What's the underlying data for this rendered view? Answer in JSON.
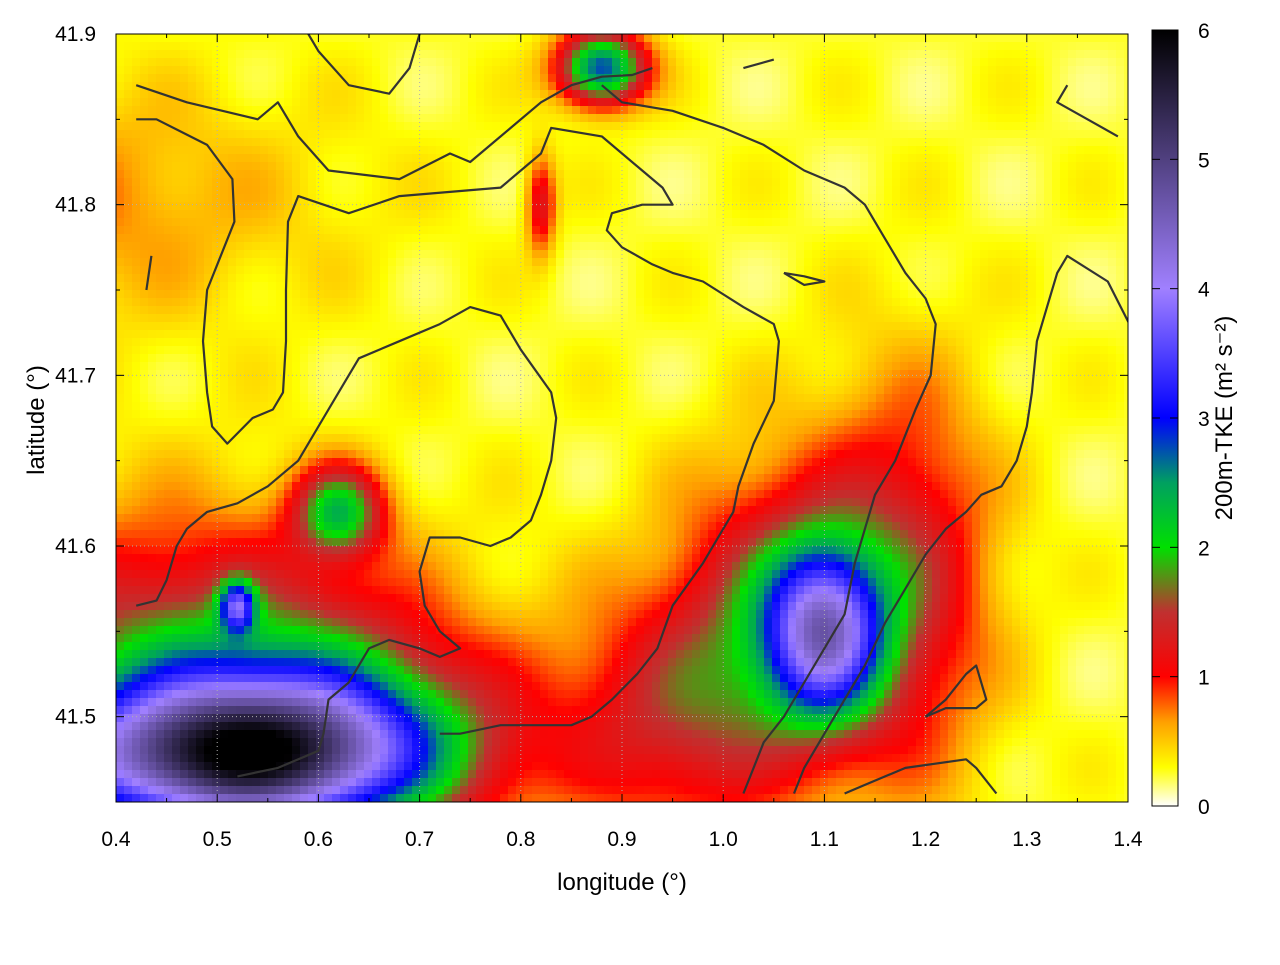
{
  "chart_data": {
    "type": "heatmap",
    "title": "",
    "xlabel": "longitude (°)",
    "ylabel": "latitude (°)",
    "xlim": [
      0.4,
      1.4
    ],
    "ylim": [
      41.45,
      41.9
    ],
    "x_ticks": [
      "0.4",
      "0.5",
      "0.6",
      "0.7",
      "0.8",
      "0.9",
      "1.0",
      "1.1",
      "1.2",
      "1.3",
      "1.4"
    ],
    "y_ticks": [
      "41.5",
      "41.6",
      "41.7",
      "41.8",
      "41.9"
    ],
    "x_tick_values": [
      0.4,
      0.5,
      0.6,
      0.7,
      0.8,
      0.9,
      1.0,
      1.1,
      1.2,
      1.3,
      1.4
    ],
    "y_tick_values": [
      41.5,
      41.6,
      41.7,
      41.8,
      41.9
    ],
    "grid": true,
    "colorbar": {
      "label": "200m-TKE (m² s⁻²)",
      "range": [
        0,
        6
      ],
      "ticks": [
        "0",
        "1",
        "2",
        "3",
        "4",
        "5",
        "6"
      ],
      "tick_values": [
        0,
        1,
        2,
        3,
        4,
        5,
        6
      ],
      "stops": [
        {
          "v": 0.0,
          "c": "#ffffff"
        },
        {
          "v": 0.3,
          "c": "#ffff00"
        },
        {
          "v": 0.65,
          "c": "#ffa000"
        },
        {
          "v": 1.0,
          "c": "#ff0000"
        },
        {
          "v": 1.5,
          "c": "#c03030"
        },
        {
          "v": 2.0,
          "c": "#00e000"
        },
        {
          "v": 2.5,
          "c": "#00a060"
        },
        {
          "v": 3.0,
          "c": "#0000ff"
        },
        {
          "v": 4.0,
          "c": "#a080ff"
        },
        {
          "v": 5.0,
          "c": "#504080"
        },
        {
          "v": 6.0,
          "c": "#000000"
        }
      ]
    },
    "field_features": [
      {
        "lon": 0.52,
        "lat": 41.475,
        "sx": 0.13,
        "sy": 0.03,
        "amp": 4.2
      },
      {
        "lon": 0.47,
        "lat": 41.53,
        "sx": 0.15,
        "sy": 0.06,
        "amp": 1.4
      },
      {
        "lon": 0.6,
        "lat": 41.5,
        "sx": 0.12,
        "sy": 0.04,
        "amp": 1.3
      },
      {
        "lon": 0.62,
        "lat": 41.62,
        "sx": 0.03,
        "sy": 0.018,
        "amp": 1.8
      },
      {
        "lon": 0.52,
        "lat": 41.565,
        "sx": 0.012,
        "sy": 0.01,
        "amp": 2.2
      },
      {
        "lon": 1.1,
        "lat": 41.55,
        "sx": 0.04,
        "sy": 0.035,
        "amp": 3.0
      },
      {
        "lon": 1.05,
        "lat": 41.56,
        "sx": 0.07,
        "sy": 0.06,
        "amp": 1.2
      },
      {
        "lon": 1.18,
        "lat": 41.58,
        "sx": 0.06,
        "sy": 0.08,
        "amp": 1.1
      },
      {
        "lon": 0.95,
        "lat": 41.5,
        "sx": 0.08,
        "sy": 0.05,
        "amp": 1.0
      },
      {
        "lon": 0.88,
        "lat": 41.88,
        "sx": 0.03,
        "sy": 0.015,
        "amp": 2.6
      },
      {
        "lon": 0.82,
        "lat": 41.8,
        "sx": 0.01,
        "sy": 0.02,
        "amp": 1.0
      },
      {
        "lon": 0.3,
        "lat": 41.8,
        "sx": 0.2,
        "sy": 0.05,
        "amp": 0.5
      }
    ],
    "contours": [
      [
        [
          0.42,
          41.87
        ],
        [
          0.47,
          41.86
        ],
        [
          0.54,
          41.85
        ],
        [
          0.56,
          41.86
        ],
        [
          0.58,
          41.84
        ],
        [
          0.61,
          41.82
        ],
        [
          0.68,
          41.815
        ],
        [
          0.73,
          41.83
        ],
        [
          0.75,
          41.825
        ],
        [
          0.76,
          41.83
        ],
        [
          0.79,
          41.845
        ],
        [
          0.82,
          41.86
        ],
        [
          0.85,
          41.87
        ],
        [
          0.88,
          41.875
        ],
        [
          0.91,
          41.876
        ],
        [
          0.93,
          41.88
        ]
      ],
      [
        [
          0.42,
          41.85
        ],
        [
          0.44,
          41.85
        ],
        [
          0.49,
          41.835
        ],
        [
          0.515,
          41.815
        ],
        [
          0.517,
          41.79
        ],
        [
          0.49,
          41.75
        ],
        [
          0.486,
          41.72
        ],
        [
          0.49,
          41.69
        ],
        [
          0.495,
          41.67
        ],
        [
          0.51,
          41.66
        ],
        [
          0.535,
          41.675
        ],
        [
          0.555,
          41.68
        ],
        [
          0.565,
          41.69
        ],
        [
          0.568,
          41.72
        ],
        [
          0.568,
          41.75
        ],
        [
          0.57,
          41.79
        ],
        [
          0.58,
          41.805
        ],
        [
          0.63,
          41.795
        ],
        [
          0.68,
          41.805
        ],
        [
          0.78,
          41.81
        ],
        [
          0.82,
          41.83
        ],
        [
          0.83,
          41.845
        ],
        [
          0.88,
          41.84
        ],
        [
          0.92,
          41.82
        ],
        [
          0.94,
          41.81
        ],
        [
          0.95,
          41.8
        ],
        [
          0.92,
          41.8
        ],
        [
          0.89,
          41.795
        ],
        [
          0.885,
          41.785
        ],
        [
          0.9,
          41.775
        ],
        [
          0.93,
          41.765
        ],
        [
          0.95,
          41.76
        ],
        [
          0.98,
          41.755
        ],
        [
          1.02,
          41.74
        ],
        [
          1.05,
          41.73
        ],
        [
          1.055,
          41.72
        ],
        [
          1.05,
          41.685
        ],
        [
          1.03,
          41.66
        ],
        [
          1.015,
          41.635
        ],
        [
          1.01,
          41.62
        ],
        [
          0.995,
          41.605
        ],
        [
          0.98,
          41.59
        ],
        [
          0.95,
          41.565
        ],
        [
          0.935,
          41.54
        ],
        [
          0.915,
          41.525
        ],
        [
          0.89,
          41.51
        ],
        [
          0.87,
          41.5
        ],
        [
          0.85,
          41.495
        ],
        [
          0.78,
          41.495
        ],
        [
          0.74,
          41.49
        ],
        [
          0.72,
          41.49
        ]
      ],
      [
        [
          0.42,
          41.565
        ],
        [
          0.44,
          41.568
        ],
        [
          0.45,
          41.58
        ],
        [
          0.46,
          41.6
        ],
        [
          0.47,
          41.61
        ],
        [
          0.49,
          41.62
        ],
        [
          0.52,
          41.625
        ],
        [
          0.55,
          41.635
        ],
        [
          0.58,
          41.65
        ],
        [
          0.6,
          41.67
        ],
        [
          0.62,
          41.69
        ],
        [
          0.64,
          41.71
        ],
        [
          0.68,
          41.72
        ],
        [
          0.72,
          41.73
        ],
        [
          0.75,
          41.74
        ],
        [
          0.78,
          41.735
        ],
        [
          0.8,
          41.715
        ],
        [
          0.83,
          41.69
        ],
        [
          0.835,
          41.675
        ],
        [
          0.83,
          41.65
        ],
        [
          0.82,
          41.63
        ],
        [
          0.81,
          41.615
        ],
        [
          0.79,
          41.605
        ],
        [
          0.77,
          41.6
        ],
        [
          0.74,
          41.605
        ],
        [
          0.71,
          41.605
        ],
        [
          0.7,
          41.585
        ],
        [
          0.705,
          41.565
        ],
        [
          0.72,
          41.55
        ],
        [
          0.74,
          41.54
        ],
        [
          0.72,
          41.535
        ],
        [
          0.7,
          41.54
        ],
        [
          0.67,
          41.545
        ],
        [
          0.65,
          41.54
        ],
        [
          0.63,
          41.52
        ],
        [
          0.61,
          41.51
        ],
        [
          0.605,
          41.49
        ],
        [
          0.6,
          41.48
        ],
        [
          0.56,
          41.47
        ],
        [
          0.52,
          41.465
        ]
      ],
      [
        [
          0.88,
          41.87
        ],
        [
          0.9,
          41.86
        ],
        [
          0.95,
          41.855
        ],
        [
          1.0,
          41.845
        ],
        [
          1.04,
          41.835
        ],
        [
          1.08,
          41.82
        ],
        [
          1.12,
          41.81
        ],
        [
          1.14,
          41.8
        ],
        [
          1.16,
          41.78
        ],
        [
          1.18,
          41.76
        ],
        [
          1.2,
          41.745
        ],
        [
          1.21,
          41.73
        ],
        [
          1.205,
          41.7
        ],
        [
          1.19,
          41.68
        ],
        [
          1.17,
          41.65
        ],
        [
          1.15,
          41.63
        ],
        [
          1.14,
          41.61
        ],
        [
          1.13,
          41.59
        ],
        [
          1.12,
          41.56
        ],
        [
          1.1,
          41.54
        ],
        [
          1.08,
          41.52
        ],
        [
          1.06,
          41.5
        ],
        [
          1.04,
          41.485
        ],
        [
          1.03,
          41.47
        ],
        [
          1.02,
          41.455
        ]
      ],
      [
        [
          1.12,
          41.455
        ],
        [
          1.14,
          41.46
        ],
        [
          1.18,
          41.47
        ],
        [
          1.24,
          41.475
        ],
        [
          1.25,
          41.47
        ],
        [
          1.27,
          41.455
        ]
      ],
      [
        [
          1.2,
          41.5
        ],
        [
          1.22,
          41.505
        ],
        [
          1.25,
          41.505
        ],
        [
          1.26,
          41.51
        ],
        [
          1.25,
          41.53
        ],
        [
          1.24,
          41.525
        ],
        [
          1.22,
          41.51
        ],
        [
          1.2,
          41.5
        ]
      ],
      [
        [
          1.34,
          41.87
        ],
        [
          1.33,
          41.86
        ],
        [
          1.36,
          41.85
        ],
        [
          1.39,
          41.84
        ]
      ],
      [
        [
          1.41,
          41.72
        ],
        [
          1.38,
          41.755
        ],
        [
          1.34,
          41.77
        ],
        [
          1.33,
          41.76
        ],
        [
          1.32,
          41.74
        ],
        [
          1.31,
          41.72
        ],
        [
          1.305,
          41.69
        ],
        [
          1.3,
          41.67
        ],
        [
          1.29,
          41.65
        ],
        [
          1.275,
          41.635
        ],
        [
          1.255,
          41.63
        ],
        [
          1.24,
          41.62
        ],
        [
          1.22,
          41.61
        ],
        [
          1.2,
          41.595
        ],
        [
          1.18,
          41.575
        ],
        [
          1.16,
          41.555
        ],
        [
          1.14,
          41.53
        ],
        [
          1.12,
          41.51
        ],
        [
          1.1,
          41.49
        ],
        [
          1.08,
          41.47
        ],
        [
          1.07,
          41.455
        ]
      ],
      [
        [
          0.43,
          41.75
        ],
        [
          0.435,
          41.77
        ]
      ],
      [
        [
          0.58,
          41.91
        ],
        [
          0.6,
          41.89
        ],
        [
          0.63,
          41.87
        ],
        [
          0.67,
          41.865
        ],
        [
          0.69,
          41.88
        ],
        [
          0.7,
          41.9
        ]
      ],
      [
        [
          1.02,
          41.88
        ],
        [
          1.05,
          41.885
        ]
      ],
      [
        [
          1.06,
          41.76
        ],
        [
          1.08,
          41.758
        ],
        [
          1.1,
          41.755
        ],
        [
          1.08,
          41.753
        ],
        [
          1.06,
          41.76
        ]
      ]
    ]
  }
}
